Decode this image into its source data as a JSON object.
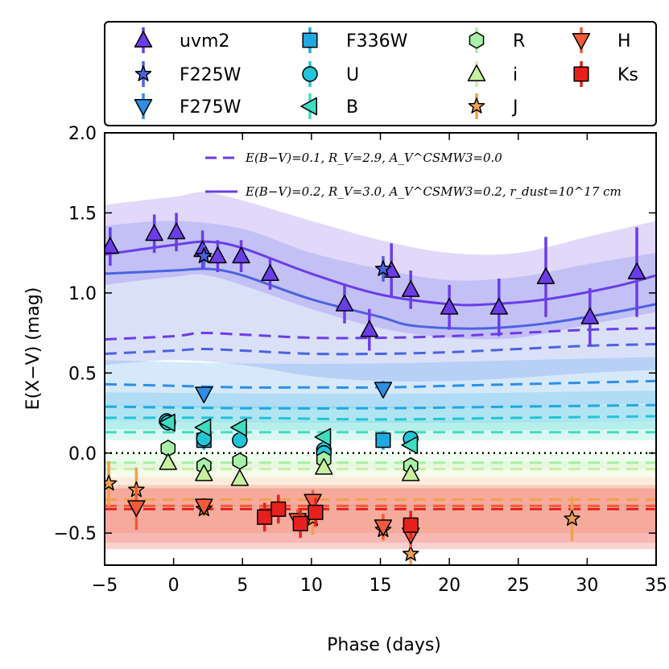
{
  "chart_data": {
    "type": "scatter",
    "xlabel": "Phase (days)",
    "ylabel": "E(X−V) (mag)",
    "xlim": [
      -5,
      35
    ],
    "ylim": [
      -0.7,
      2.0
    ],
    "xticks": [
      -5,
      0,
      5,
      10,
      15,
      20,
      25,
      30,
      35
    ],
    "xtick_labels": [
      "−5",
      "0",
      "5",
      "10",
      "15",
      "20",
      "25",
      "30",
      "35"
    ],
    "yticks": [
      -0.5,
      0.0,
      0.5,
      1.0,
      1.5,
      2.0
    ],
    "ytick_labels": [
      "−0.5",
      "0.0",
      "0.5",
      "1.0",
      "1.5",
      "2.0"
    ],
    "zero_line": 0.0,
    "legend_position": "top (outside plot)",
    "model_legend": [
      {
        "style": "dashed",
        "label": "E(B−V)=0.1, R_V=2.9, A_V^CSMW3=0.0"
      },
      {
        "style": "solid",
        "label": "E(B−V)=0.2, R_V=3.0, A_V^CSMW3=0.2, r_dust=10^17 cm"
      }
    ],
    "series": [
      {
        "name": "uvm2",
        "marker": "triangle-up",
        "color": "#6a3de8",
        "points": [
          [
            -4.6,
            1.29,
            0.12
          ],
          [
            -1.4,
            1.37,
            0.12
          ],
          [
            0.2,
            1.38,
            0.12
          ],
          [
            2.1,
            1.27,
            0.12
          ],
          [
            3.2,
            1.23,
            0.1
          ],
          [
            4.9,
            1.23,
            0.1
          ],
          [
            7.0,
            1.12,
            0.1
          ],
          [
            12.4,
            0.93,
            0.12
          ],
          [
            14.2,
            0.77,
            0.13
          ],
          [
            15.8,
            1.14,
            0.17
          ],
          [
            17.2,
            1.02,
            0.12
          ],
          [
            20.0,
            0.91,
            0.14
          ],
          [
            23.6,
            0.91,
            0.18
          ],
          [
            27.0,
            1.1,
            0.25
          ],
          [
            30.2,
            0.85,
            0.18
          ],
          [
            33.6,
            1.13,
            0.28
          ]
        ],
        "model_solid": [
          [
            -5,
            1.24
          ],
          [
            0,
            1.3
          ],
          [
            2.5,
            1.32
          ],
          [
            5,
            1.28
          ],
          [
            10,
            1.12
          ],
          [
            15,
            0.99
          ],
          [
            20,
            0.93
          ],
          [
            23,
            0.93
          ],
          [
            27,
            0.96
          ],
          [
            32,
            1.04
          ],
          [
            35,
            1.11
          ]
        ],
        "model_dashed": [
          [
            -5,
            0.71
          ],
          [
            0,
            0.73
          ],
          [
            2,
            0.75
          ],
          [
            5,
            0.74
          ],
          [
            10,
            0.72
          ],
          [
            15,
            0.72
          ],
          [
            20,
            0.73
          ],
          [
            25,
            0.75
          ],
          [
            30,
            0.77
          ],
          [
            35,
            0.78
          ]
        ],
        "band": [
          [
            -5,
            1.05,
            1.55
          ],
          [
            0,
            1.1,
            1.6
          ],
          [
            3,
            1.1,
            1.62
          ],
          [
            10,
            0.9,
            1.45
          ],
          [
            15,
            0.78,
            1.33
          ],
          [
            20,
            0.72,
            1.25
          ],
          [
            25,
            0.72,
            1.25
          ],
          [
            30,
            0.8,
            1.35
          ],
          [
            35,
            0.88,
            1.45
          ]
        ]
      },
      {
        "name": "F225W",
        "marker": "star",
        "color": "#4a63e0",
        "points": [
          [
            2.2,
            1.23,
            0.07
          ],
          [
            15.2,
            1.15,
            0.08
          ]
        ],
        "model_solid": [
          [
            -5,
            1.12
          ],
          [
            0,
            1.14
          ],
          [
            2.5,
            1.15
          ],
          [
            5,
            1.11
          ],
          [
            10,
            0.96
          ],
          [
            15,
            0.85
          ],
          [
            17,
            0.8
          ],
          [
            20,
            0.78
          ],
          [
            23,
            0.78
          ],
          [
            27,
            0.81
          ],
          [
            32,
            0.88
          ],
          [
            35,
            0.93
          ]
        ],
        "model_dashed": [
          [
            -5,
            0.62
          ],
          [
            0,
            0.64
          ],
          [
            2,
            0.65
          ],
          [
            5,
            0.64
          ],
          [
            10,
            0.62
          ],
          [
            15,
            0.62
          ],
          [
            20,
            0.63
          ],
          [
            25,
            0.65
          ],
          [
            30,
            0.67
          ],
          [
            35,
            0.68
          ]
        ],
        "band": [
          [
            -5,
            0.55,
            1.42
          ],
          [
            0,
            0.58,
            1.45
          ],
          [
            5,
            0.55,
            1.4
          ],
          [
            10,
            0.48,
            1.25
          ],
          [
            15,
            0.45,
            1.15
          ],
          [
            20,
            0.45,
            1.08
          ],
          [
            25,
            0.47,
            1.1
          ],
          [
            30,
            0.5,
            1.18
          ],
          [
            35,
            0.52,
            1.25
          ]
        ]
      },
      {
        "name": "F275W",
        "marker": "triangle-down",
        "color": "#2c8fe6",
        "points": [
          [
            2.2,
            0.37,
            0.05
          ],
          [
            15.2,
            0.4,
            0.05
          ]
        ],
        "model_dashed": [
          [
            -5,
            0.43
          ],
          [
            0,
            0.42
          ],
          [
            5,
            0.41
          ],
          [
            10,
            0.41
          ],
          [
            15,
            0.41
          ],
          [
            20,
            0.42
          ],
          [
            25,
            0.43
          ],
          [
            30,
            0.44
          ],
          [
            35,
            0.45
          ]
        ],
        "band": [
          [
            -5,
            0.3,
            0.58
          ],
          [
            5,
            0.28,
            0.56
          ],
          [
            15,
            0.28,
            0.56
          ],
          [
            25,
            0.29,
            0.58
          ],
          [
            35,
            0.31,
            0.6
          ]
        ]
      },
      {
        "name": "F336W",
        "marker": "square",
        "color": "#20a8e0",
        "points": [
          [
            2.2,
            0.08,
            0.06
          ],
          [
            15.2,
            0.08,
            0.06
          ]
        ],
        "model_dashed": [
          [
            -5,
            0.29
          ],
          [
            5,
            0.28
          ],
          [
            15,
            0.28
          ],
          [
            25,
            0.29
          ],
          [
            35,
            0.3
          ]
        ],
        "band": [
          [
            -5,
            0.2,
            0.38
          ],
          [
            15,
            0.19,
            0.37
          ],
          [
            35,
            0.2,
            0.39
          ]
        ]
      },
      {
        "name": "U",
        "marker": "circle",
        "color": "#22c4d8",
        "points": [
          [
            -0.5,
            0.2,
            0.05
          ],
          [
            -0.4,
            0.19,
            0.05
          ],
          [
            2.2,
            0.09,
            0.05
          ],
          [
            4.8,
            0.08,
            0.05
          ],
          [
            10.9,
            0.02,
            0.05
          ],
          [
            10.9,
            0.0,
            0.05
          ],
          [
            17.2,
            0.09,
            0.05
          ]
        ],
        "model_dashed": [
          [
            -5,
            0.22
          ],
          [
            5,
            0.22
          ],
          [
            15,
            0.21
          ],
          [
            25,
            0.22
          ],
          [
            35,
            0.23
          ]
        ],
        "band": [
          [
            -5,
            0.15,
            0.3
          ],
          [
            15,
            0.14,
            0.29
          ],
          [
            35,
            0.15,
            0.3
          ]
        ]
      },
      {
        "name": "B",
        "marker": "triangle-left",
        "color": "#3fdcc0",
        "points": [
          [
            -0.4,
            0.19,
            0.04
          ],
          [
            2.2,
            0.16,
            0.04
          ],
          [
            4.8,
            0.16,
            0.04
          ],
          [
            10.9,
            0.1,
            0.04
          ],
          [
            17.2,
            0.05,
            0.04
          ]
        ],
        "model_dashed": [
          [
            -5,
            0.13
          ],
          [
            5,
            0.13
          ],
          [
            15,
            0.13
          ],
          [
            25,
            0.13
          ],
          [
            35,
            0.13
          ]
        ],
        "band": [
          [
            -5,
            0.08,
            0.2
          ],
          [
            15,
            0.08,
            0.2
          ],
          [
            35,
            0.08,
            0.2
          ]
        ]
      },
      {
        "name": "R",
        "marker": "hexagon",
        "color": "#a8f0a8",
        "points": [
          [
            -0.4,
            0.03,
            0.03
          ],
          [
            2.2,
            -0.08,
            0.03
          ],
          [
            4.8,
            -0.05,
            0.03
          ],
          [
            10.9,
            -0.04,
            0.03
          ],
          [
            17.2,
            -0.08,
            0.03
          ]
        ],
        "model_dashed": [
          [
            -5,
            -0.06
          ],
          [
            15,
            -0.06
          ],
          [
            35,
            -0.06
          ]
        ],
        "band": [
          [
            -5,
            -0.1,
            0.0
          ],
          [
            35,
            -0.1,
            0.0
          ]
        ]
      },
      {
        "name": "i",
        "marker": "triangle-up",
        "color": "#c8f0a0",
        "points": [
          [
            -0.4,
            -0.06,
            0.03
          ],
          [
            2.2,
            -0.13,
            0.03
          ],
          [
            4.8,
            -0.16,
            0.03
          ],
          [
            10.9,
            -0.09,
            0.03
          ],
          [
            17.2,
            -0.13,
            0.03
          ]
        ],
        "model_dashed": [
          [
            -5,
            -0.1
          ],
          [
            15,
            -0.1
          ],
          [
            35,
            -0.1
          ]
        ],
        "band": [
          [
            -5,
            -0.15,
            -0.05
          ],
          [
            35,
            -0.15,
            -0.05
          ]
        ]
      },
      {
        "name": "J",
        "marker": "star",
        "color": "#f0a050",
        "points": [
          [
            -4.7,
            -0.19,
            0.14
          ],
          [
            -2.7,
            -0.23,
            0.14
          ],
          [
            2.2,
            -0.35,
            0.05
          ],
          [
            10.1,
            -0.41,
            0.1
          ],
          [
            15.2,
            -0.48,
            0.07
          ],
          [
            17.2,
            -0.63,
            0.07
          ],
          [
            28.9,
            -0.41,
            0.14
          ]
        ],
        "model_dashed": [
          [
            -5,
            -0.29
          ],
          [
            15,
            -0.29
          ],
          [
            35,
            -0.29
          ]
        ],
        "band": [
          [
            -5,
            -0.5,
            -0.15
          ],
          [
            35,
            -0.5,
            -0.15
          ]
        ]
      },
      {
        "name": "H",
        "marker": "triangle-down",
        "color": "#f25a3a",
        "points": [
          [
            -2.7,
            -0.34,
            0.14
          ],
          [
            2.2,
            -0.33,
            0.05
          ],
          [
            9.0,
            -0.42,
            0.07
          ],
          [
            10.1,
            -0.3,
            0.07
          ],
          [
            15.2,
            -0.46,
            0.08
          ],
          [
            17.2,
            -0.51,
            0.08
          ]
        ],
        "model_dashed": [
          [
            -5,
            -0.33
          ],
          [
            15,
            -0.33
          ],
          [
            35,
            -0.33
          ]
        ],
        "band": [
          [
            -5,
            -0.56,
            -0.2
          ],
          [
            35,
            -0.56,
            -0.2
          ]
        ]
      },
      {
        "name": "Ks",
        "marker": "square",
        "color": "#e8201c",
        "points": [
          [
            6.6,
            -0.4,
            0.09
          ],
          [
            7.6,
            -0.35,
            0.09
          ],
          [
            9.2,
            -0.44,
            0.09
          ],
          [
            10.3,
            -0.37,
            0.09
          ],
          [
            17.2,
            -0.45,
            0.09
          ]
        ],
        "model_dashed": [
          [
            -5,
            -0.35
          ],
          [
            15,
            -0.35
          ],
          [
            35,
            -0.35
          ]
        ],
        "band": [
          [
            -5,
            -0.6,
            -0.22
          ],
          [
            35,
            -0.6,
            -0.22
          ]
        ]
      }
    ]
  }
}
